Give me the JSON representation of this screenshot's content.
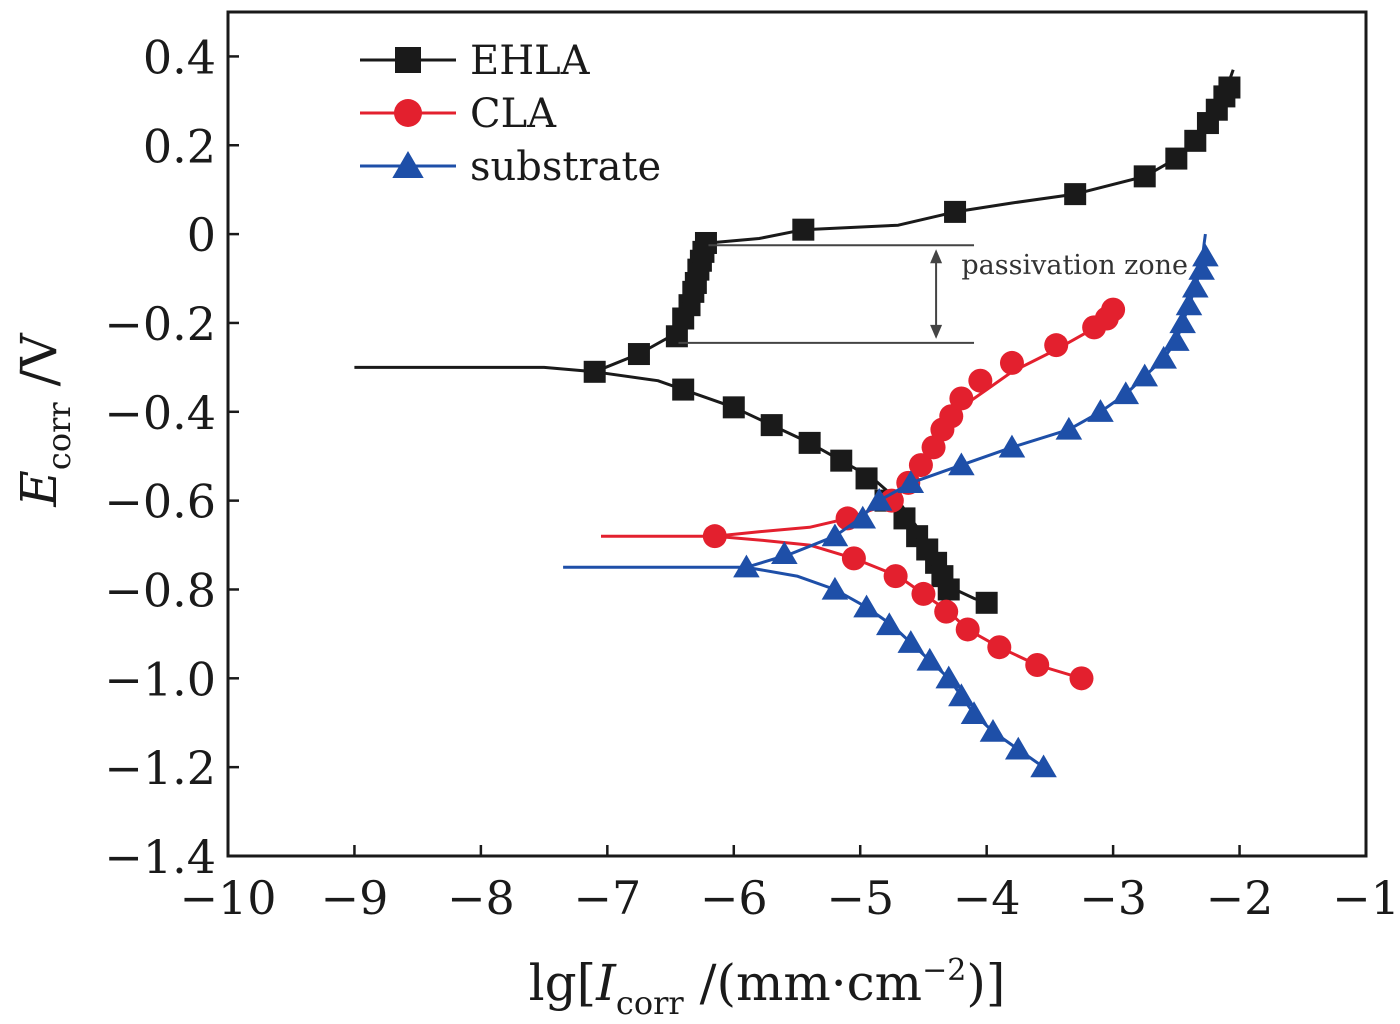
{
  "chart_data": {
    "type": "line",
    "title": "",
    "xlabel_parts": {
      "prefix": "lg[",
      "var": "I",
      "sub": "corr",
      "mid": " /(mm·cm",
      "sup": "−2",
      "suffix": ")]"
    },
    "ylabel_parts": {
      "var": "E",
      "sub": "corr",
      "unit": " /V"
    },
    "xlim": [
      -10,
      -1
    ],
    "ylim": [
      -1.4,
      0.5
    ],
    "xticks": [
      -10,
      -9,
      -8,
      -7,
      -6,
      -5,
      -4,
      -3,
      -2,
      -1
    ],
    "xtick_labels": [
      "−10",
      "−9",
      "−8",
      "−7",
      "−6",
      "−5",
      "−4",
      "−3",
      "−2",
      "−1"
    ],
    "yticks": [
      0.4,
      0.2,
      0,
      -0.2,
      -0.4,
      -0.6,
      -0.8,
      -1.0,
      -1.2,
      -1.4
    ],
    "ytick_labels": [
      "0.4",
      "0.2",
      "0",
      "−0.2",
      "−0.4",
      "−0.6",
      "−0.8",
      "−1.0",
      "−1.2",
      "−1.4"
    ],
    "legend_position": "top-left",
    "grid": false,
    "series": [
      {
        "name": "EHLA",
        "color": "#1a1a1a",
        "marker": "square",
        "line": [
          [
            -9.0,
            -0.3
          ],
          [
            -7.5,
            -0.3
          ],
          [
            -7.1,
            -0.31
          ],
          [
            -6.75,
            -0.27
          ],
          [
            -6.5,
            -0.23
          ],
          [
            -6.4,
            -0.2
          ],
          [
            -6.35,
            -0.15
          ],
          [
            -6.3,
            -0.1
          ],
          [
            -6.25,
            -0.05
          ],
          [
            -6.2,
            -0.02
          ],
          [
            -5.8,
            -0.01
          ],
          [
            -5.45,
            0.01
          ],
          [
            -4.7,
            0.02
          ],
          [
            -4.25,
            0.05
          ],
          [
            -3.8,
            0.07
          ],
          [
            -3.3,
            0.09
          ],
          [
            -2.75,
            0.13
          ],
          [
            -2.5,
            0.17
          ],
          [
            -2.35,
            0.21
          ],
          [
            -2.25,
            0.25
          ],
          [
            -2.2,
            0.28
          ],
          [
            -2.15,
            0.31
          ],
          [
            -2.1,
            0.33
          ],
          [
            -2.05,
            0.37
          ]
        ],
        "line2": [
          [
            -7.1,
            -0.31
          ],
          [
            -6.6,
            -0.33
          ],
          [
            -6.4,
            -0.35
          ],
          [
            -6.0,
            -0.39
          ],
          [
            -5.7,
            -0.43
          ],
          [
            -5.4,
            -0.47
          ],
          [
            -5.15,
            -0.51
          ],
          [
            -4.9,
            -0.55
          ],
          [
            -4.7,
            -0.6
          ],
          [
            -4.6,
            -0.64
          ],
          [
            -4.5,
            -0.68
          ],
          [
            -4.42,
            -0.72
          ],
          [
            -4.35,
            -0.76
          ],
          [
            -4.25,
            -0.8
          ],
          [
            -4.1,
            -0.82
          ],
          [
            -4.0,
            -0.83
          ]
        ],
        "markers": [
          [
            -7.1,
            -0.31
          ],
          [
            -6.75,
            -0.27
          ],
          [
            -6.45,
            -0.23
          ],
          [
            -6.4,
            -0.19
          ],
          [
            -6.35,
            -0.16
          ],
          [
            -6.32,
            -0.13
          ],
          [
            -6.3,
            -0.11
          ],
          [
            -6.28,
            -0.08
          ],
          [
            -6.26,
            -0.06
          ],
          [
            -6.24,
            -0.04
          ],
          [
            -6.22,
            -0.02
          ],
          [
            -5.45,
            0.01
          ],
          [
            -4.25,
            0.05
          ],
          [
            -3.3,
            0.09
          ],
          [
            -2.75,
            0.13
          ],
          [
            -2.5,
            0.17
          ],
          [
            -2.35,
            0.21
          ],
          [
            -2.25,
            0.25
          ],
          [
            -2.18,
            0.28
          ],
          [
            -2.12,
            0.31
          ],
          [
            -2.08,
            0.33
          ],
          [
            -6.4,
            -0.35
          ],
          [
            -6.0,
            -0.39
          ],
          [
            -5.7,
            -0.43
          ],
          [
            -5.4,
            -0.47
          ],
          [
            -5.15,
            -0.51
          ],
          [
            -4.95,
            -0.55
          ],
          [
            -4.8,
            -0.6
          ],
          [
            -4.65,
            -0.64
          ],
          [
            -4.55,
            -0.68
          ],
          [
            -4.47,
            -0.71
          ],
          [
            -4.4,
            -0.74
          ],
          [
            -4.35,
            -0.77
          ],
          [
            -4.3,
            -0.8
          ],
          [
            -4.0,
            -0.83
          ]
        ]
      },
      {
        "name": "CLA",
        "color": "#e3202e",
        "marker": "circle",
        "line": [
          [
            -7.05,
            -0.68
          ],
          [
            -6.5,
            -0.68
          ],
          [
            -6.15,
            -0.68
          ],
          [
            -5.8,
            -0.67
          ],
          [
            -5.4,
            -0.66
          ],
          [
            -5.1,
            -0.64
          ],
          [
            -4.9,
            -0.62
          ],
          [
            -4.75,
            -0.6
          ],
          [
            -4.6,
            -0.56
          ],
          [
            -4.5,
            -0.52
          ],
          [
            -4.4,
            -0.47
          ],
          [
            -4.3,
            -0.43
          ],
          [
            -4.2,
            -0.39
          ],
          [
            -4.0,
            -0.35
          ],
          [
            -3.8,
            -0.31
          ],
          [
            -3.45,
            -0.26
          ],
          [
            -3.2,
            -0.22
          ],
          [
            -3.0,
            -0.17
          ]
        ],
        "line2": [
          [
            -6.15,
            -0.68
          ],
          [
            -5.75,
            -0.69
          ],
          [
            -5.4,
            -0.7
          ],
          [
            -5.05,
            -0.73
          ],
          [
            -4.7,
            -0.77
          ],
          [
            -4.5,
            -0.81
          ],
          [
            -4.3,
            -0.85
          ],
          [
            -4.15,
            -0.89
          ],
          [
            -3.9,
            -0.93
          ],
          [
            -3.6,
            -0.97
          ],
          [
            -3.25,
            -1.0
          ]
        ],
        "markers": [
          [
            -6.15,
            -0.68
          ],
          [
            -5.1,
            -0.64
          ],
          [
            -4.75,
            -0.6
          ],
          [
            -4.62,
            -0.56
          ],
          [
            -4.52,
            -0.52
          ],
          [
            -4.42,
            -0.48
          ],
          [
            -4.35,
            -0.44
          ],
          [
            -4.28,
            -0.41
          ],
          [
            -4.2,
            -0.37
          ],
          [
            -4.05,
            -0.33
          ],
          [
            -3.8,
            -0.29
          ],
          [
            -3.45,
            -0.25
          ],
          [
            -3.15,
            -0.21
          ],
          [
            -3.05,
            -0.19
          ],
          [
            -3.0,
            -0.17
          ],
          [
            -5.05,
            -0.73
          ],
          [
            -4.72,
            -0.77
          ],
          [
            -4.5,
            -0.81
          ],
          [
            -4.32,
            -0.85
          ],
          [
            -4.15,
            -0.89
          ],
          [
            -3.9,
            -0.93
          ],
          [
            -3.6,
            -0.97
          ],
          [
            -3.25,
            -1.0
          ]
        ]
      },
      {
        "name": "substrate",
        "color": "#1e4fa8",
        "marker": "triangle",
        "line": [
          [
            -7.35,
            -0.75
          ],
          [
            -6.7,
            -0.75
          ],
          [
            -5.9,
            -0.75
          ],
          [
            -5.55,
            -0.72
          ],
          [
            -5.2,
            -0.68
          ],
          [
            -5.0,
            -0.64
          ],
          [
            -4.85,
            -0.6
          ],
          [
            -4.6,
            -0.56
          ],
          [
            -4.2,
            -0.52
          ],
          [
            -3.8,
            -0.48
          ],
          [
            -3.35,
            -0.44
          ],
          [
            -3.1,
            -0.4
          ],
          [
            -2.9,
            -0.36
          ],
          [
            -2.75,
            -0.32
          ],
          [
            -2.6,
            -0.28
          ],
          [
            -2.5,
            -0.24
          ],
          [
            -2.45,
            -0.2
          ],
          [
            -2.4,
            -0.16
          ],
          [
            -2.35,
            -0.12
          ],
          [
            -2.3,
            -0.07
          ],
          [
            -2.28,
            -0.02
          ],
          [
            -2.27,
            0.0
          ]
        ],
        "line2": [
          [
            -5.9,
            -0.75
          ],
          [
            -5.5,
            -0.77
          ],
          [
            -5.2,
            -0.8
          ],
          [
            -4.95,
            -0.84
          ],
          [
            -4.75,
            -0.88
          ],
          [
            -4.6,
            -0.92
          ],
          [
            -4.45,
            -0.96
          ],
          [
            -4.3,
            -1.0
          ],
          [
            -4.2,
            -1.04
          ],
          [
            -4.1,
            -1.08
          ],
          [
            -3.95,
            -1.12
          ],
          [
            -3.75,
            -1.16
          ],
          [
            -3.55,
            -1.2
          ]
        ],
        "markers": [
          [
            -5.9,
            -0.75
          ],
          [
            -5.6,
            -0.72
          ],
          [
            -5.2,
            -0.68
          ],
          [
            -4.98,
            -0.64
          ],
          [
            -4.85,
            -0.6
          ],
          [
            -4.6,
            -0.56
          ],
          [
            -4.2,
            -0.52
          ],
          [
            -3.8,
            -0.48
          ],
          [
            -3.35,
            -0.44
          ],
          [
            -3.1,
            -0.4
          ],
          [
            -2.9,
            -0.36
          ],
          [
            -2.75,
            -0.32
          ],
          [
            -2.6,
            -0.28
          ],
          [
            -2.5,
            -0.24
          ],
          [
            -2.45,
            -0.2
          ],
          [
            -2.4,
            -0.16
          ],
          [
            -2.35,
            -0.12
          ],
          [
            -2.3,
            -0.08
          ],
          [
            -2.27,
            -0.05
          ],
          [
            -5.2,
            -0.8
          ],
          [
            -4.95,
            -0.84
          ],
          [
            -4.77,
            -0.88
          ],
          [
            -4.6,
            -0.92
          ],
          [
            -4.45,
            -0.96
          ],
          [
            -4.3,
            -1.0
          ],
          [
            -4.2,
            -1.04
          ],
          [
            -4.1,
            -1.08
          ],
          [
            -3.95,
            -1.12
          ],
          [
            -3.75,
            -1.16
          ],
          [
            -3.55,
            -1.2
          ]
        ]
      }
    ],
    "annotation": {
      "text": "passivation zone",
      "y_top": -0.025,
      "y_bottom": -0.245,
      "x_start": -6.2,
      "x_end": -4.1,
      "arrow_x": -4.4,
      "label_x": -4.2,
      "label_y": -0.09
    }
  }
}
